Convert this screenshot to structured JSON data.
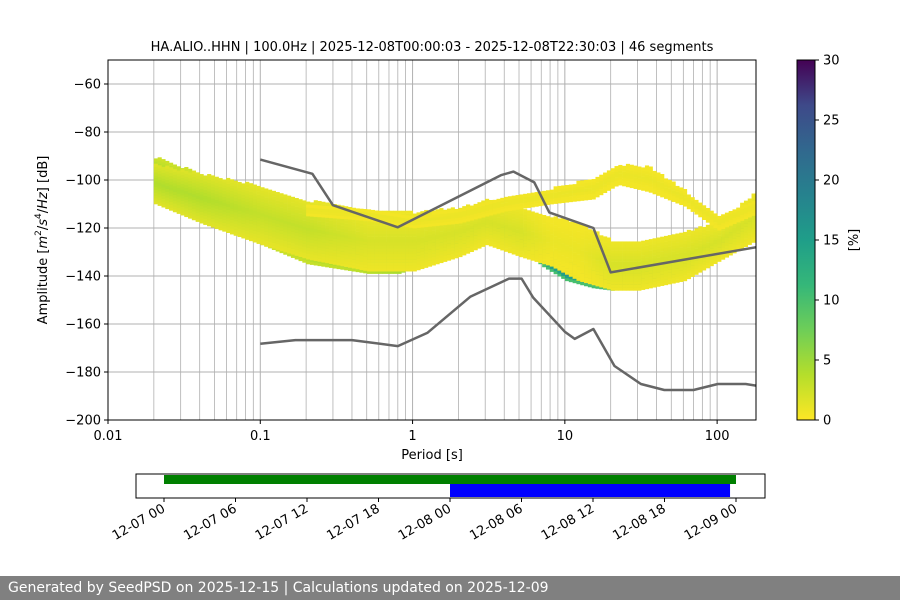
{
  "chart_data": {
    "type": "heatmap",
    "title": "HA.ALIO..HHN | 100.0Hz | 2025-12-08T00:00:03 - 2025-12-08T22:30:03 | 46 segments",
    "xlabel": "Period [s]",
    "ylabel_parts": [
      "Amplitude [",
      "m",
      "2",
      "/",
      "s",
      "4",
      "/",
      "Hz",
      "] [dB]"
    ],
    "x_scale": "log",
    "xlim": [
      0.01,
      180
    ],
    "ylim": [
      -200,
      -50
    ],
    "x_ticks": [
      {
        "v": 0.01,
        "label": "0.01"
      },
      {
        "v": 0.1,
        "label": "0.1"
      },
      {
        "v": 1,
        "label": "1"
      },
      {
        "v": 10,
        "label": "10"
      },
      {
        "v": 100,
        "label": "100"
      }
    ],
    "y_ticks": [
      -200,
      -180,
      -160,
      -140,
      -120,
      -100,
      -80,
      -60
    ],
    "grid": true,
    "colorbar": {
      "label": "[%]",
      "min": 0,
      "max": 30,
      "ticks": [
        0,
        5,
        10,
        15,
        20,
        25,
        30
      ],
      "colormap": "viridis_r"
    },
    "noise_model_high": {
      "x": [
        0.1,
        0.22,
        0.3,
        0.8,
        3.8,
        4.6,
        6.3,
        7.9,
        15.4,
        20,
        200
      ],
      "y": [
        -91.5,
        -97.4,
        -110.5,
        -119.7,
        -98,
        -96.5,
        -101,
        -113.5,
        -120,
        -138.5,
        -127.5
      ]
    },
    "noise_model_low": {
      "x": [
        0.1,
        0.17,
        0.4,
        0.8,
        1.25,
        2.4,
        4.3,
        5.2,
        6.2,
        10,
        11.6,
        15.4,
        21.2,
        31.6,
        45,
        70,
        101,
        154,
        180
      ],
      "y": [
        -168.2,
        -166.7,
        -166.7,
        -169.2,
        -163.7,
        -148.6,
        -141.1,
        -141.1,
        -149,
        -163.2,
        -166.2,
        -162.1,
        -177.5,
        -185,
        -187.5,
        -187.5,
        -185,
        -185,
        -185.7
      ]
    },
    "psd_bands": [
      {
        "name": "main",
        "x": [
          0.02,
          0.04,
          0.1,
          0.2,
          0.5,
          0.8,
          1.2,
          2,
          3,
          4,
          5,
          7,
          10,
          15,
          20,
          30,
          50,
          100,
          180
        ],
        "y": [
          -100,
          -108,
          -118,
          -127,
          -132,
          -134,
          -130,
          -126,
          -120,
          -122,
          -125,
          -132,
          -138,
          -141,
          -143,
          -142,
          -138,
          -128,
          -116
        ],
        "w": [
          9,
          10,
          9,
          8,
          7,
          5,
          5,
          5,
          4,
          3,
          3,
          4,
          4,
          4,
          3,
          3,
          3,
          3,
          3
        ],
        "v": [
          6,
          6,
          7,
          7,
          9,
          11,
          13,
          17,
          15,
          20,
          25,
          25,
          25,
          25,
          27,
          27,
          27,
          27,
          27
        ]
      },
      {
        "name": "spread",
        "x": [
          0.02,
          0.04,
          0.1,
          0.2,
          0.5,
          1,
          2,
          3,
          5,
          8,
          12,
          20,
          30,
          60,
          100,
          180
        ],
        "y": [
          -102,
          -108,
          -115,
          -121,
          -126,
          -126,
          -122,
          -118,
          -122,
          -126,
          -130,
          -136,
          -136,
          -132,
          -126,
          -115
        ],
        "w": [
          8,
          10,
          12,
          12,
          12,
          12,
          10,
          9,
          10,
          10,
          12,
          10,
          10,
          10,
          8,
          10
        ],
        "v": [
          4,
          4,
          3,
          3,
          2,
          2,
          2,
          2,
          2,
          1,
          1,
          2,
          2,
          2,
          2,
          2
        ]
      },
      {
        "name": "upper",
        "x": [
          0.2,
          0.5,
          1,
          2,
          4,
          8,
          15,
          22,
          35,
          60,
          100,
          180
        ],
        "y": [
          -113,
          -115,
          -118,
          -115,
          -110,
          -107,
          -104,
          -98,
          -100,
          -108,
          -118,
          -111
        ],
        "w": [
          2,
          2,
          2,
          3,
          3,
          3,
          4,
          4,
          5,
          3,
          3,
          3
        ],
        "v": [
          1,
          1,
          1,
          1,
          1,
          1,
          1,
          1,
          1,
          1,
          1,
          1
        ]
      }
    ]
  },
  "availability": {
    "x_ticks": [
      "12-07 00",
      "12-07 06",
      "12-07 12",
      "12-07 18",
      "12-08 00",
      "12-08 06",
      "12-08 12",
      "12-08 18",
      "12-09 00"
    ],
    "green_bar": {
      "start_hours": 0,
      "end_hours": 48
    },
    "blue_bar": {
      "start_hours": 24,
      "end_hours": 47.5
    },
    "green_color": "#008000",
    "blue_color": "#0000ff"
  },
  "footer": {
    "text": "Generated by SeedPSD on 2025-12-15 | Calculations updated on 2025-12-09"
  }
}
